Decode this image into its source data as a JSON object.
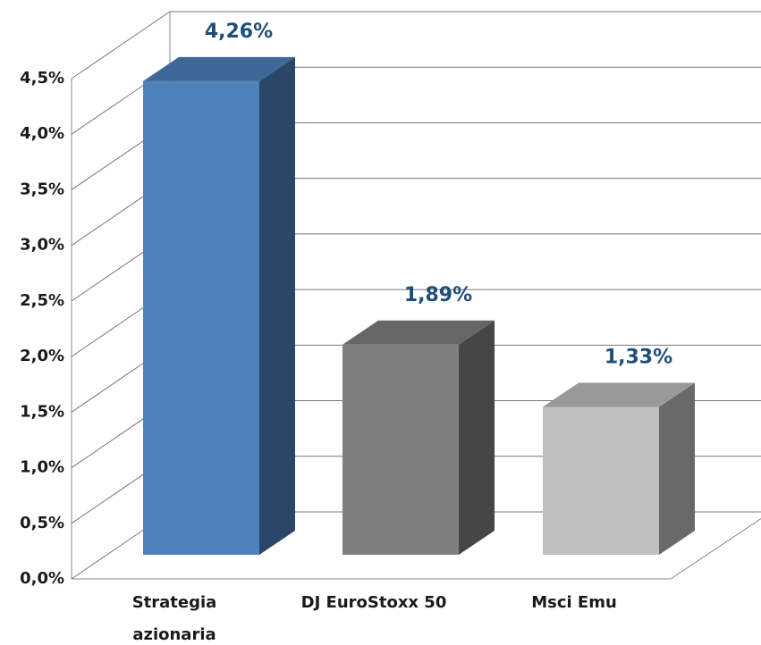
{
  "chart_data": {
    "type": "bar3d",
    "categories": [
      "Strategia azionaria",
      "DJ EuroStoxx 50",
      "Msci Emu"
    ],
    "values": [
      4.26,
      1.89,
      1.33
    ],
    "value_labels": [
      "4,26%",
      "1,89%",
      "1,33%"
    ],
    "colors": [
      "#4f81bd",
      "#7f7f7f",
      "#bfbfbf"
    ],
    "ylim": [
      0,
      4.5
    ],
    "yticks": [
      {
        "value": 0,
        "label": "0,0%"
      },
      {
        "value": 0.5,
        "label": "0,5%"
      },
      {
        "value": 1,
        "label": "1,0%"
      },
      {
        "value": 1.5,
        "label": "1,5%"
      },
      {
        "value": 2,
        "label": "2,0%"
      },
      {
        "value": 2.5,
        "label": "2,5%"
      },
      {
        "value": 3,
        "label": "3,0%"
      },
      {
        "value": 3.5,
        "label": "3,5%"
      },
      {
        "value": 4,
        "label": "4,0%"
      },
      {
        "value": 4.5,
        "label": "4,5%"
      }
    ],
    "grid": true
  }
}
